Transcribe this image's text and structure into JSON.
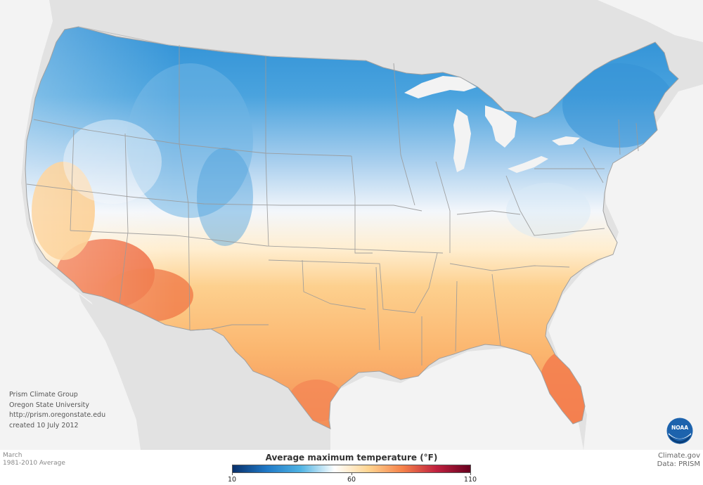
{
  "map": {
    "legend": {
      "title": "Average maximum temperature (°F)",
      "ticks": [
        "10",
        "60",
        "110"
      ],
      "tick_values": [
        10,
        60,
        110
      ],
      "range": [
        10,
        110
      ],
      "colors": [
        "#08306b",
        "#1f78c6",
        "#4fb3e3",
        "#ffffff",
        "#ffd591",
        "#f5824a",
        "#c0213f",
        "#67001f"
      ]
    },
    "credits": {
      "line1": "Prism Climate Group",
      "line2": "Oregon State University",
      "line3": "http://prism.oregonstate.edu",
      "line4": "created 10 July 2012"
    },
    "footer": {
      "month": "March",
      "period": "1981-2010 Average",
      "site": "Climate.gov",
      "source": "Data: PRISM"
    },
    "logo_text": "NOAA",
    "colors": {
      "land_outside": "#e2e2e2",
      "water": "#f3f3f3",
      "cold": "#2b8fd6",
      "mild": "#f7f9fc",
      "warm": "#fcc27a",
      "hot": "#ec5c3a"
    }
  }
}
